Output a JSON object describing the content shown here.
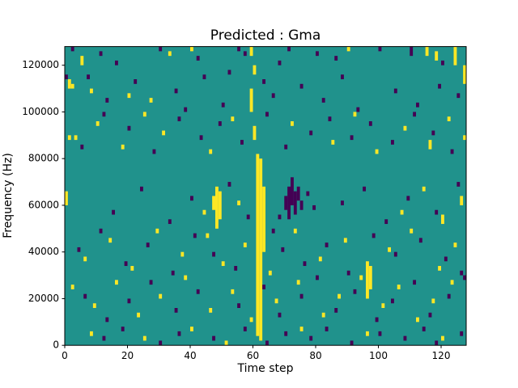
{
  "figure": {
    "background": "#ffffff"
  },
  "chart_data": {
    "type": "heatmap",
    "title": "Predicted : Gma",
    "xlabel": "Time step",
    "ylabel": "Frequency (Hz)",
    "xlim": [
      0,
      128
    ],
    "ylim": [
      0,
      128000
    ],
    "xticks": [
      0,
      20,
      40,
      60,
      80,
      100,
      120
    ],
    "yticks": [
      0,
      20000,
      40000,
      60000,
      80000,
      100000,
      120000
    ],
    "grid": {
      "cols": 128,
      "rows": 64,
      "freq_per_row": 2000
    },
    "colors": {
      "mid": "#20928c",
      "high": "#fde725",
      "low": "#440154",
      "axis": "#000000"
    },
    "legend": "none",
    "cells_note": "runs are [time_col, freq_row_start, freq_row_end], row 0 = bottom (0 Hz)",
    "cells_high": [
      [
        0,
        30,
        32
      ],
      [
        1,
        44,
        44
      ],
      [
        1,
        55,
        56
      ],
      [
        2,
        12,
        12
      ],
      [
        2,
        55,
        55
      ],
      [
        3,
        44,
        44
      ],
      [
        5,
        60,
        61
      ],
      [
        6,
        18,
        18
      ],
      [
        8,
        2,
        2
      ],
      [
        8,
        54,
        54
      ],
      [
        9,
        8,
        8
      ],
      [
        10,
        47,
        47
      ],
      [
        14,
        22,
        22
      ],
      [
        16,
        13,
        13
      ],
      [
        18,
        42,
        42
      ],
      [
        20,
        53,
        53
      ],
      [
        21,
        16,
        16
      ],
      [
        23,
        6,
        6
      ],
      [
        25,
        1,
        1
      ],
      [
        25,
        49,
        49
      ],
      [
        27,
        52,
        52
      ],
      [
        29,
        24,
        24
      ],
      [
        30,
        10,
        10
      ],
      [
        31,
        45,
        45
      ],
      [
        33,
        62,
        62
      ],
      [
        37,
        19,
        19
      ],
      [
        38,
        14,
        14
      ],
      [
        40,
        3,
        3
      ],
      [
        40,
        63,
        63
      ],
      [
        44,
        28,
        28
      ],
      [
        45,
        23,
        23
      ],
      [
        46,
        7,
        7
      ],
      [
        46,
        41,
        41
      ],
      [
        47,
        29,
        31
      ],
      [
        48,
        25,
        33
      ],
      [
        49,
        27,
        32
      ],
      [
        50,
        17,
        17
      ],
      [
        51,
        0,
        0
      ],
      [
        53,
        11,
        11
      ],
      [
        53,
        48,
        48
      ],
      [
        55,
        30,
        30
      ],
      [
        57,
        21,
        21
      ],
      [
        59,
        5,
        5
      ],
      [
        59,
        50,
        54
      ],
      [
        59,
        62,
        63
      ],
      [
        60,
        44,
        46
      ],
      [
        60,
        58,
        59
      ],
      [
        61,
        2,
        40
      ],
      [
        62,
        1,
        39
      ],
      [
        63,
        20,
        33
      ],
      [
        65,
        15,
        15
      ],
      [
        67,
        9,
        9
      ],
      [
        72,
        47,
        47
      ],
      [
        73,
        24,
        24
      ],
      [
        74,
        13,
        13
      ],
      [
        75,
        3,
        3
      ],
      [
        81,
        18,
        18
      ],
      [
        82,
        6,
        6
      ],
      [
        85,
        43,
        43
      ],
      [
        87,
        10,
        10
      ],
      [
        89,
        22,
        22
      ],
      [
        90,
        63,
        63
      ],
      [
        92,
        49,
        49
      ],
      [
        94,
        14,
        14
      ],
      [
        96,
        2,
        2
      ],
      [
        96,
        10,
        17
      ],
      [
        97,
        12,
        16
      ],
      [
        99,
        41,
        41
      ],
      [
        101,
        8,
        8
      ],
      [
        103,
        20,
        20
      ],
      [
        106,
        12,
        12
      ],
      [
        107,
        28,
        28
      ],
      [
        108,
        46,
        46
      ],
      [
        110,
        24,
        24
      ],
      [
        112,
        5,
        5
      ],
      [
        114,
        33,
        33
      ],
      [
        115,
        62,
        63
      ],
      [
        116,
        42,
        43
      ],
      [
        117,
        9,
        9
      ],
      [
        118,
        61,
        62
      ],
      [
        119,
        16,
        16
      ],
      [
        120,
        1,
        1
      ],
      [
        120,
        26,
        27
      ],
      [
        122,
        48,
        48
      ],
      [
        123,
        13,
        13
      ],
      [
        124,
        21,
        21
      ],
      [
        124,
        60,
        63
      ],
      [
        126,
        30,
        31
      ],
      [
        127,
        44,
        44
      ],
      [
        127,
        56,
        59
      ]
    ],
    "cells_low": [
      [
        0,
        57,
        57
      ],
      [
        2,
        63,
        63
      ],
      [
        4,
        20,
        20
      ],
      [
        5,
        42,
        42
      ],
      [
        6,
        10,
        10
      ],
      [
        7,
        57,
        57
      ],
      [
        11,
        24,
        24
      ],
      [
        11,
        62,
        62
      ],
      [
        12,
        1,
        1
      ],
      [
        12,
        49,
        49
      ],
      [
        13,
        5,
        5
      ],
      [
        13,
        52,
        52
      ],
      [
        15,
        28,
        28
      ],
      [
        16,
        60,
        60
      ],
      [
        18,
        3,
        3
      ],
      [
        19,
        17,
        17
      ],
      [
        20,
        9,
        9
      ],
      [
        20,
        46,
        46
      ],
      [
        22,
        56,
        56
      ],
      [
        24,
        33,
        33
      ],
      [
        26,
        21,
        21
      ],
      [
        27,
        13,
        13
      ],
      [
        28,
        41,
        41
      ],
      [
        30,
        0,
        0
      ],
      [
        30,
        63,
        63
      ],
      [
        33,
        26,
        26
      ],
      [
        34,
        15,
        15
      ],
      [
        35,
        7,
        7
      ],
      [
        35,
        54,
        54
      ],
      [
        36,
        2,
        2
      ],
      [
        36,
        48,
        48
      ],
      [
        38,
        50,
        50
      ],
      [
        40,
        31,
        31
      ],
      [
        41,
        23,
        23
      ],
      [
        42,
        11,
        11
      ],
      [
        42,
        61,
        61
      ],
      [
        43,
        44,
        44
      ],
      [
        44,
        57,
        57
      ],
      [
        47,
        1,
        1
      ],
      [
        47,
        19,
        19
      ],
      [
        49,
        47,
        47
      ],
      [
        50,
        51,
        51
      ],
      [
        52,
        34,
        34
      ],
      [
        52,
        58,
        58
      ],
      [
        54,
        16,
        16
      ],
      [
        55,
        8,
        8
      ],
      [
        55,
        63,
        63
      ],
      [
        56,
        43,
        43
      ],
      [
        57,
        3,
        3
      ],
      [
        57,
        62,
        62
      ],
      [
        58,
        27,
        27
      ],
      [
        63,
        12,
        12
      ],
      [
        63,
        56,
        56
      ],
      [
        64,
        0,
        0
      ],
      [
        64,
        49,
        49
      ],
      [
        66,
        24,
        24
      ],
      [
        66,
        53,
        53
      ],
      [
        68,
        6,
        6
      ],
      [
        68,
        27,
        27
      ],
      [
        68,
        60,
        60
      ],
      [
        69,
        20,
        20
      ],
      [
        70,
        2,
        2
      ],
      [
        70,
        29,
        31
      ],
      [
        70,
        42,
        42
      ],
      [
        71,
        27,
        33
      ],
      [
        71,
        63,
        63
      ],
      [
        72,
        30,
        35
      ],
      [
        73,
        28,
        32
      ],
      [
        74,
        31,
        33
      ],
      [
        75,
        10,
        10
      ],
      [
        75,
        29,
        30
      ],
      [
        75,
        55,
        55
      ],
      [
        76,
        17,
        17
      ],
      [
        77,
        32,
        32
      ],
      [
        78,
        1,
        1
      ],
      [
        78,
        45,
        45
      ],
      [
        79,
        29,
        29
      ],
      [
        80,
        14,
        14
      ],
      [
        80,
        62,
        62
      ],
      [
        82,
        52,
        52
      ],
      [
        83,
        3,
        3
      ],
      [
        83,
        21,
        21
      ],
      [
        84,
        48,
        48
      ],
      [
        86,
        7,
        7
      ],
      [
        86,
        61,
        61
      ],
      [
        88,
        30,
        30
      ],
      [
        88,
        57,
        57
      ],
      [
        90,
        15,
        15
      ],
      [
        91,
        0,
        0
      ],
      [
        91,
        44,
        44
      ],
      [
        92,
        11,
        11
      ],
      [
        93,
        50,
        50
      ],
      [
        95,
        33,
        33
      ],
      [
        97,
        47,
        47
      ],
      [
        98,
        23,
        23
      ],
      [
        99,
        5,
        5
      ],
      [
        100,
        2,
        2
      ],
      [
        100,
        63,
        63
      ],
      [
        102,
        26,
        26
      ],
      [
        104,
        9,
        9
      ],
      [
        104,
        43,
        43
      ],
      [
        105,
        19,
        19
      ],
      [
        105,
        54,
        54
      ],
      [
        108,
        1,
        1
      ],
      [
        109,
        31,
        31
      ],
      [
        110,
        62,
        63
      ],
      [
        111,
        13,
        13
      ],
      [
        111,
        49,
        49
      ],
      [
        112,
        51,
        51
      ],
      [
        113,
        22,
        22
      ],
      [
        114,
        3,
        3
      ],
      [
        116,
        6,
        6
      ],
      [
        117,
        45,
        45
      ],
      [
        118,
        0,
        0
      ],
      [
        118,
        28,
        28
      ],
      [
        119,
        55,
        55
      ],
      [
        120,
        60,
        60
      ],
      [
        121,
        18,
        18
      ],
      [
        122,
        10,
        10
      ],
      [
        123,
        41,
        41
      ],
      [
        125,
        34,
        34
      ],
      [
        125,
        53,
        53
      ],
      [
        126,
        2,
        2
      ],
      [
        126,
        15,
        15
      ],
      [
        127,
        14,
        14
      ]
    ]
  }
}
